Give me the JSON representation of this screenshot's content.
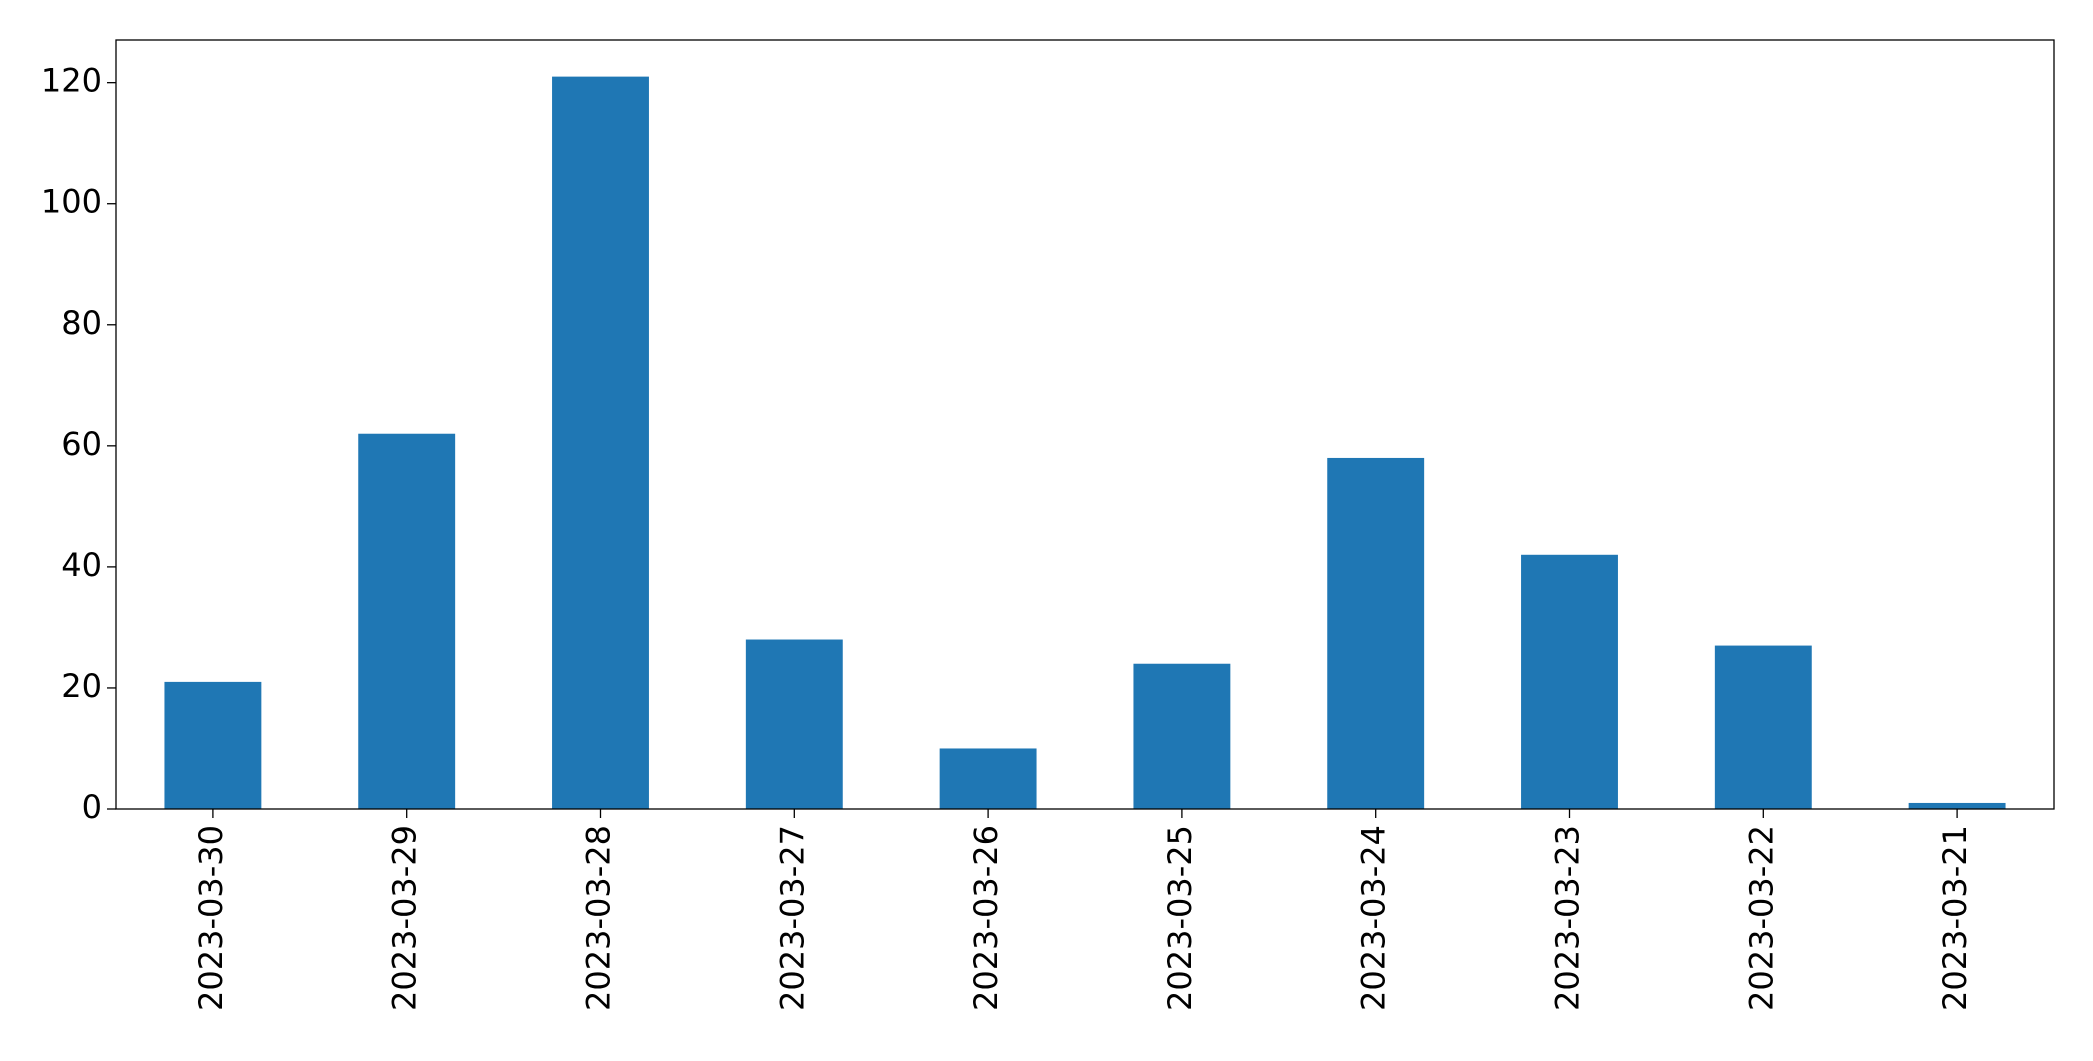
{
  "chart_data": {
    "type": "bar",
    "categories": [
      "2023-03-30",
      "2023-03-29",
      "2023-03-28",
      "2023-03-27",
      "2023-03-26",
      "2023-03-25",
      "2023-03-24",
      "2023-03-23",
      "2023-03-22",
      "2023-03-21"
    ],
    "values": [
      21,
      62,
      121,
      28,
      10,
      24,
      58,
      42,
      27,
      1
    ],
    "color": "#1f77b4",
    "ylim": [
      0,
      127.05
    ],
    "yticks": [
      0,
      20,
      40,
      60,
      80,
      100,
      120
    ],
    "grid": false
  }
}
